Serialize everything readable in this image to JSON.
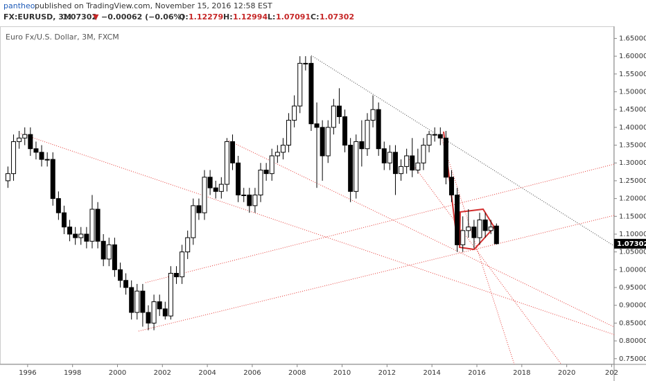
{
  "header": {
    "author": "pantheo",
    "published": "published on TradingView.com, November 15, 2016 12:58 EST",
    "symbol": "FX:EURUSD, 3M",
    "last": "1.07302",
    "arrow": "▼",
    "change": "−0.00062 (−0.06%)",
    "o_label": "O:",
    "o": "1.12279",
    "h_label": "H:",
    "h": "1.12994",
    "l_label": "L:",
    "l": "1.07091",
    "c_label": "C:",
    "c": "1.07302"
  },
  "chart_data": {
    "type": "candlestick",
    "title": "Euro Fx/U.S. Dollar, 3M, FXCM",
    "last_price_label": "1.07302",
    "up_color": "#ffffff",
    "down_color": "#000000",
    "wick_color": "#000000",
    "x": [
      1995,
      1995.25,
      1995.5,
      1995.75,
      1996,
      1996.25,
      1996.5,
      1996.75,
      1997,
      1997.25,
      1997.5,
      1997.75,
      1998,
      1998.25,
      1998.5,
      1998.75,
      1999,
      1999.25,
      1999.5,
      1999.75,
      2000,
      2000.25,
      2000.5,
      2000.75,
      2001,
      2001.25,
      2001.5,
      2001.75,
      2002,
      2002.25,
      2002.5,
      2002.75,
      2003,
      2003.25,
      2003.5,
      2003.75,
      2004,
      2004.25,
      2004.5,
      2004.75,
      2005,
      2005.25,
      2005.5,
      2005.75,
      2006,
      2006.25,
      2006.5,
      2006.75,
      2007,
      2007.25,
      2007.5,
      2007.75,
      2008,
      2008.25,
      2008.5,
      2008.75,
      2009,
      2009.25,
      2009.5,
      2009.75,
      2010,
      2010.25,
      2010.5,
      2010.75,
      2011,
      2011.25,
      2011.5,
      2011.75,
      2012,
      2012.25,
      2012.5,
      2012.75,
      2013,
      2013.25,
      2013.5,
      2013.75,
      2014,
      2014.25,
      2014.5,
      2014.75,
      2015,
      2015.25,
      2015.5,
      2015.75,
      2016,
      2016.25,
      2016.5,
      2016.75
    ],
    "open": [
      1.25,
      1.27,
      1.36,
      1.37,
      1.38,
      1.34,
      1.33,
      1.31,
      1.31,
      1.2,
      1.16,
      1.12,
      1.1,
      1.09,
      1.1,
      1.08,
      1.17,
      1.08,
      1.03,
      1.07,
      1.0,
      0.97,
      0.95,
      0.88,
      0.94,
      0.88,
      0.85,
      0.91,
      0.89,
      0.87,
      0.99,
      0.98,
      1.05,
      1.09,
      1.18,
      1.16,
      1.26,
      1.23,
      1.22,
      1.24,
      1.36,
      1.3,
      1.21,
      1.21,
      1.18,
      1.21,
      1.28,
      1.27,
      1.32,
      1.33,
      1.35,
      1.42,
      1.46,
      1.58,
      1.58,
      1.41,
      1.4,
      1.32,
      1.4,
      1.46,
      1.43,
      1.35,
      1.22,
      1.36,
      1.34,
      1.42,
      1.45,
      1.34,
      1.3,
      1.33,
      1.27,
      1.29,
      1.32,
      1.28,
      1.3,
      1.35,
      1.38,
      1.38,
      1.37,
      1.26,
      1.21,
      1.07,
      1.11,
      1.12,
      1.09,
      1.14,
      1.11,
      1.12279
    ],
    "high": [
      1.29,
      1.38,
      1.39,
      1.4,
      1.4,
      1.36,
      1.35,
      1.33,
      1.33,
      1.22,
      1.18,
      1.14,
      1.12,
      1.12,
      1.12,
      1.21,
      1.19,
      1.1,
      1.09,
      1.09,
      1.02,
      0.99,
      0.97,
      0.96,
      0.96,
      0.9,
      0.93,
      0.93,
      0.91,
      1.01,
      1.01,
      1.07,
      1.11,
      1.2,
      1.2,
      1.28,
      1.28,
      1.25,
      1.26,
      1.37,
      1.38,
      1.32,
      1.23,
      1.23,
      1.23,
      1.3,
      1.3,
      1.34,
      1.35,
      1.37,
      1.44,
      1.49,
      1.6,
      1.6,
      1.6,
      1.47,
      1.42,
      1.42,
      1.48,
      1.51,
      1.45,
      1.37,
      1.38,
      1.42,
      1.44,
      1.49,
      1.47,
      1.36,
      1.35,
      1.35,
      1.31,
      1.34,
      1.37,
      1.34,
      1.37,
      1.39,
      1.4,
      1.4,
      1.39,
      1.28,
      1.23,
      1.15,
      1.17,
      1.14,
      1.16,
      1.16,
      1.14,
      1.12994
    ],
    "low": [
      1.23,
      1.25,
      1.34,
      1.35,
      1.32,
      1.31,
      1.29,
      1.29,
      1.18,
      1.14,
      1.1,
      1.08,
      1.07,
      1.07,
      1.06,
      1.06,
      1.06,
      1.01,
      1.01,
      0.98,
      0.95,
      0.93,
      0.86,
      0.86,
      0.84,
      0.83,
      0.83,
      0.87,
      0.86,
      0.86,
      0.96,
      0.96,
      1.03,
      1.07,
      1.14,
      1.14,
      1.21,
      1.2,
      1.2,
      1.22,
      1.28,
      1.19,
      1.19,
      1.16,
      1.16,
      1.19,
      1.25,
      1.25,
      1.3,
      1.31,
      1.33,
      1.4,
      1.44,
      1.56,
      1.39,
      1.23,
      1.25,
      1.3,
      1.38,
      1.41,
      1.33,
      1.19,
      1.2,
      1.29,
      1.32,
      1.4,
      1.32,
      1.28,
      1.28,
      1.21,
      1.25,
      1.27,
      1.26,
      1.27,
      1.28,
      1.33,
      1.36,
      1.35,
      1.24,
      1.19,
      1.05,
      1.05,
      1.09,
      1.06,
      1.07,
      1.09,
      1.1,
      1.07091
    ],
    "close": [
      1.27,
      1.36,
      1.37,
      1.38,
      1.34,
      1.33,
      1.31,
      1.31,
      1.2,
      1.16,
      1.12,
      1.1,
      1.09,
      1.1,
      1.08,
      1.17,
      1.08,
      1.03,
      1.07,
      1.0,
      0.97,
      0.95,
      0.88,
      0.94,
      0.88,
      0.85,
      0.91,
      0.89,
      0.87,
      0.99,
      0.98,
      1.05,
      1.09,
      1.18,
      1.16,
      1.26,
      1.23,
      1.22,
      1.24,
      1.36,
      1.3,
      1.21,
      1.21,
      1.18,
      1.21,
      1.28,
      1.27,
      1.32,
      1.33,
      1.35,
      1.42,
      1.46,
      1.58,
      1.58,
      1.41,
      1.4,
      1.32,
      1.4,
      1.46,
      1.43,
      1.35,
      1.22,
      1.36,
      1.34,
      1.42,
      1.45,
      1.34,
      1.3,
      1.33,
      1.27,
      1.29,
      1.32,
      1.28,
      1.3,
      1.35,
      1.38,
      1.38,
      1.37,
      1.26,
      1.21,
      1.07,
      1.11,
      1.12,
      1.09,
      1.14,
      1.11,
      1.12,
      1.07302
    ],
    "xlim": [
      1994.77,
      2022.11
    ],
    "xticks": [
      1996,
      1998,
      2000,
      2002,
      2004,
      2006,
      2008,
      2010,
      2012,
      2014,
      2016,
      2018,
      2020,
      {
        "value": 2022,
        "label": "202"
      }
    ],
    "ylim": [
      0.734,
      1.682
    ],
    "yticks": [
      {
        "value": 0.75,
        "label": "0.75000"
      },
      {
        "value": 0.8,
        "label": "0.80000"
      },
      {
        "value": 0.85,
        "label": "0.85000"
      },
      {
        "value": 0.9,
        "label": "0.90000"
      },
      {
        "value": 0.95,
        "label": "0.95000"
      },
      {
        "value": 1.0,
        "label": "1.00000"
      },
      {
        "value": 1.05,
        "label": "1.05000"
      },
      {
        "value": 1.1,
        "label": "1.10000"
      },
      {
        "value": 1.15,
        "label": "1.15000"
      },
      {
        "value": 1.2,
        "label": "1.20000"
      },
      {
        "value": 1.25,
        "label": "1.25000"
      },
      {
        "value": 1.3,
        "label": "1.30000"
      },
      {
        "value": 1.35,
        "label": "1.35000"
      },
      {
        "value": 1.4,
        "label": "1.40000"
      },
      {
        "value": 1.45,
        "label": "1.45000"
      },
      {
        "value": 1.5,
        "label": "1.50000"
      },
      {
        "value": 1.55,
        "label": "1.55000"
      },
      {
        "value": 1.6,
        "label": "1.60000"
      },
      {
        "value": 1.65,
        "label": "1.65000"
      }
    ],
    "grid": false
  }
}
